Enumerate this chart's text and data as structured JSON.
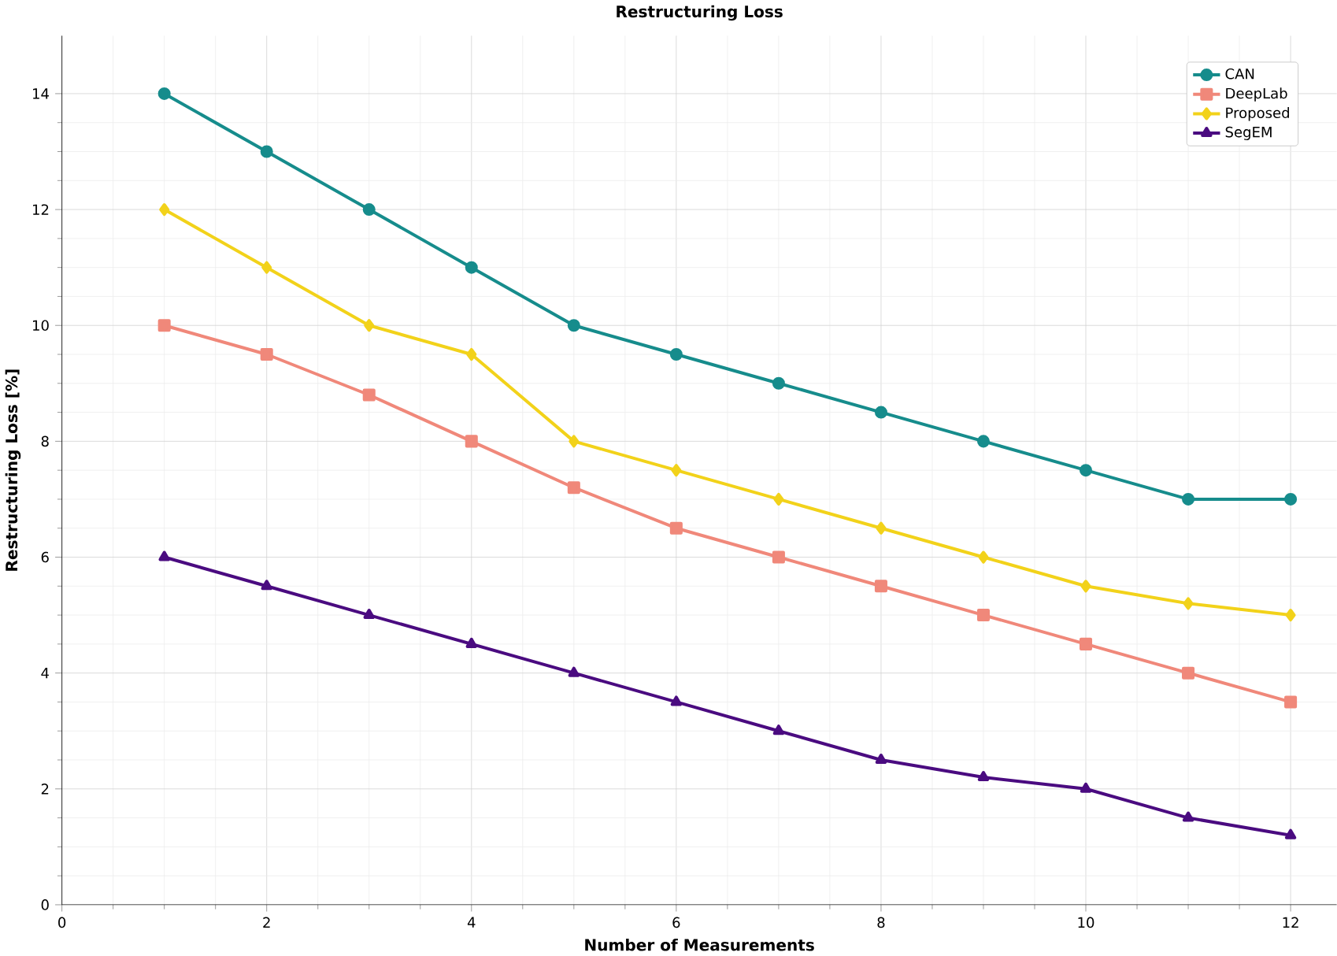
{
  "chart_data": {
    "type": "line",
    "title": "Restructuring Loss",
    "xlabel": "Number of Measurements",
    "ylabel": "Restructuring Loss [%]",
    "x": [
      1,
      2,
      3,
      4,
      5,
      6,
      7,
      8,
      9,
      10,
      11,
      12
    ],
    "series": [
      {
        "name": "CAN",
        "color": "#168c8c",
        "marker": "circle",
        "values": [
          14,
          13,
          12,
          11,
          10,
          9.5,
          9,
          8.5,
          8,
          7.5,
          7,
          7
        ]
      },
      {
        "name": "DeepLab",
        "color": "#f0887a",
        "marker": "square",
        "values": [
          10,
          9.5,
          8.8,
          8,
          7.2,
          6.5,
          6,
          5.5,
          5,
          4.5,
          4,
          3.5
        ]
      },
      {
        "name": "Proposed",
        "color": "#f2d21a",
        "marker": "diamond",
        "values": [
          12,
          11,
          10,
          9.5,
          8,
          7.5,
          7,
          6.5,
          6,
          5.5,
          5.2,
          5
        ]
      },
      {
        "name": "SegEM",
        "color": "#4a0b80",
        "marker": "triangle",
        "values": [
          6,
          5.5,
          5,
          4.5,
          4,
          3.5,
          3,
          2.5,
          2.2,
          2,
          1.5,
          1.2
        ]
      }
    ],
    "xlim": [
      0,
      12.45
    ],
    "ylim": [
      0,
      15
    ],
    "xticks": [
      0,
      2,
      4,
      6,
      8,
      10,
      12
    ],
    "yticks": [
      0,
      2,
      4,
      6,
      8,
      10,
      12,
      14
    ],
    "grid": true,
    "legend": "top right",
    "line_style": "solid"
  }
}
